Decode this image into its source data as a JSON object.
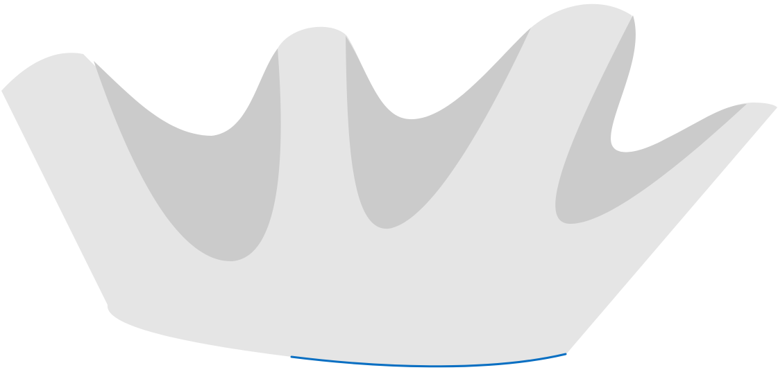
{
  "graphic": {
    "icon": "crown-icon",
    "colors": {
      "background": "#ffffff",
      "base": "#e5e5e5",
      "shadow": "#cbcbcb",
      "accent": "#0a6fc2"
    }
  }
}
